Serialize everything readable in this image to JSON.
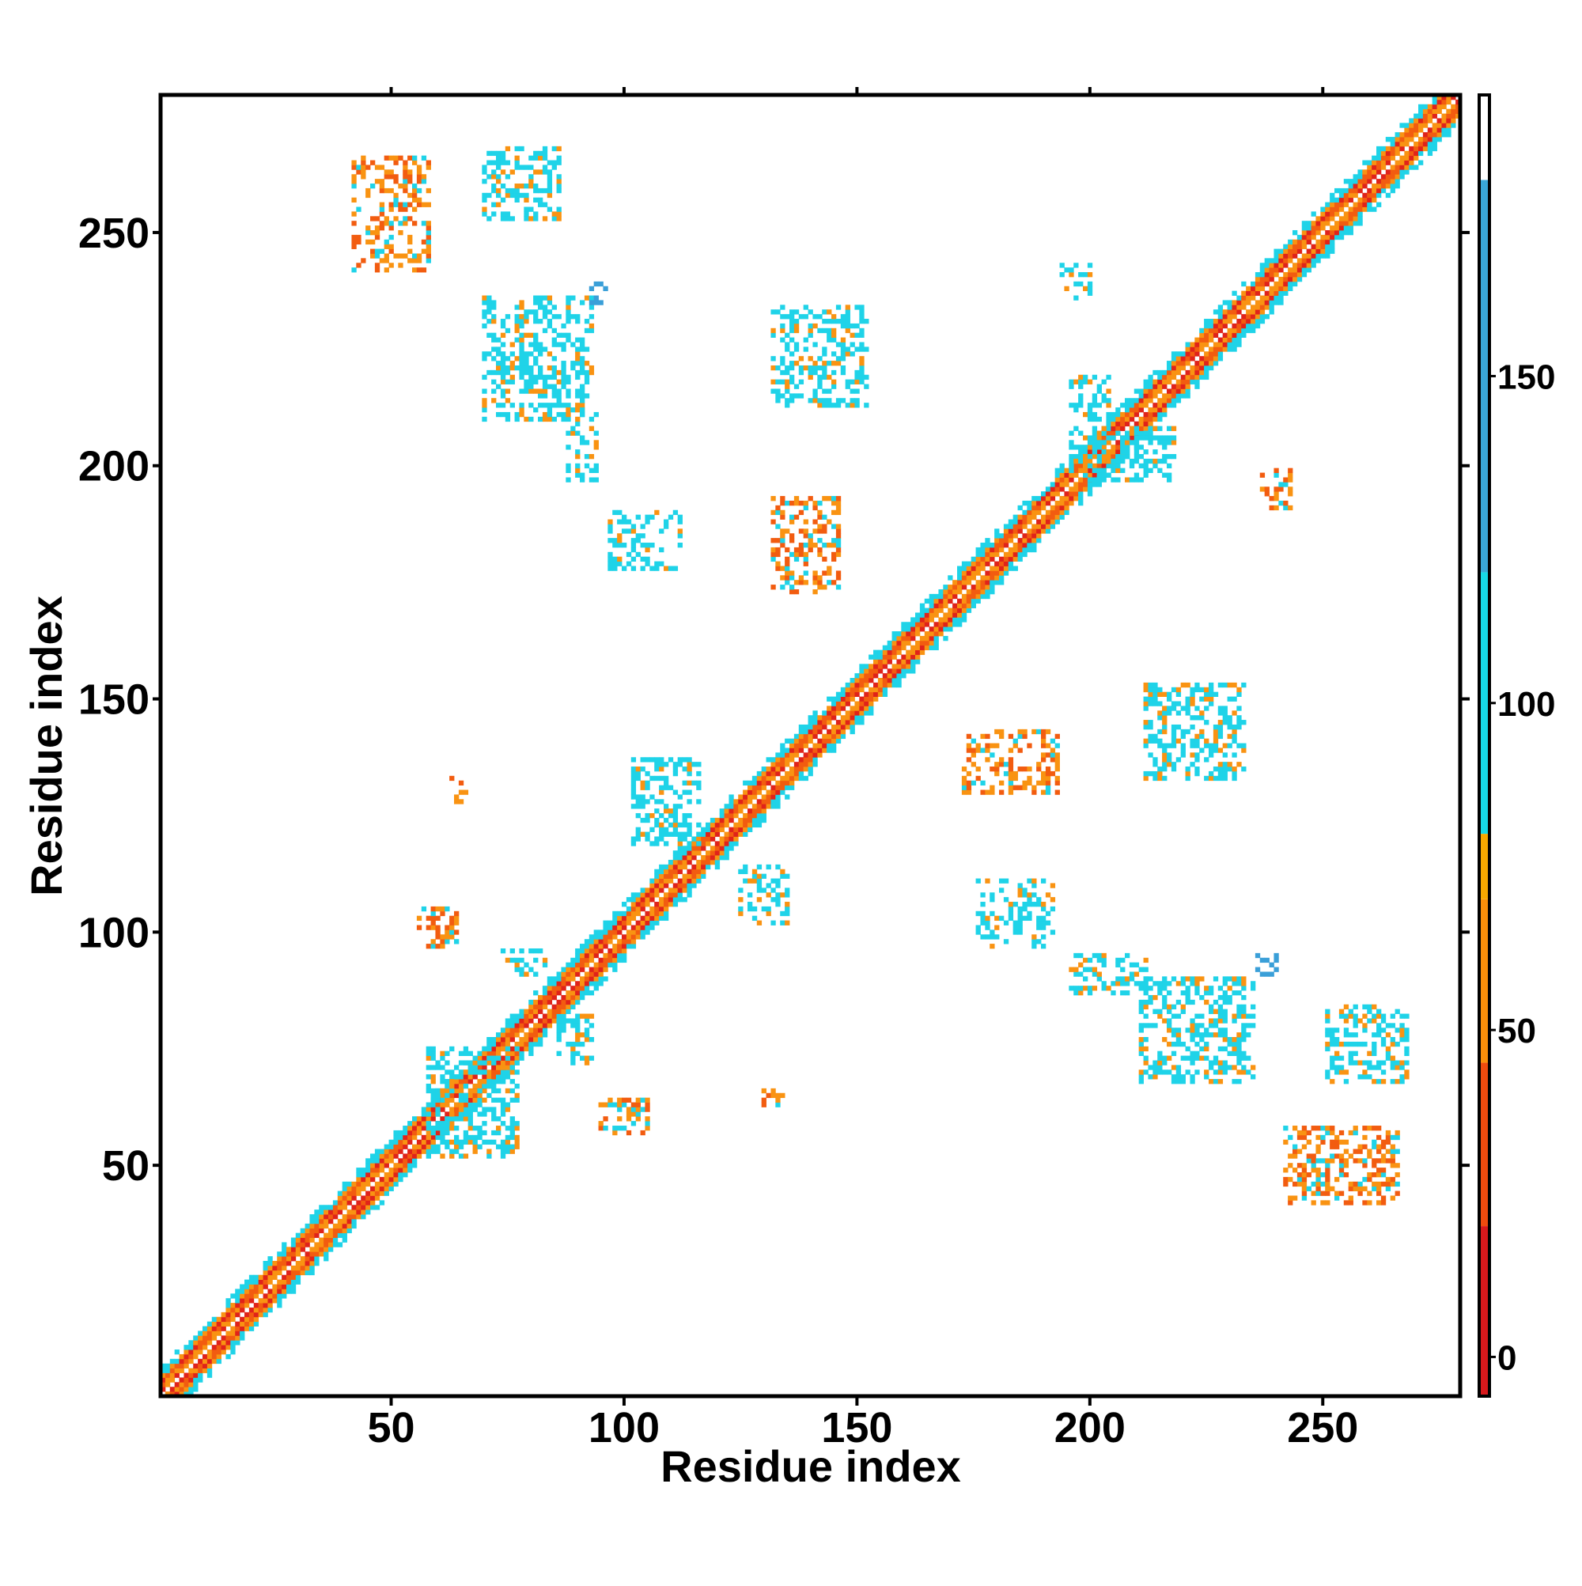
{
  "chart_data": {
    "type": "heatmap",
    "title": "",
    "xlabel": "Residue index",
    "ylabel": "Residue index",
    "xlim": [
      1,
      279
    ],
    "ylim": [
      1,
      279
    ],
    "x_ticks": [
      50,
      100,
      150,
      200,
      250
    ],
    "y_ticks": [
      50,
      100,
      150,
      200,
      250
    ],
    "colorbar": {
      "ticks": [
        0,
        50,
        100,
        150
      ],
      "range": [
        -6,
        193
      ],
      "bands": [
        {
          "from": -6,
          "to": 20,
          "color": "#d7191c"
        },
        {
          "from": 20,
          "to": 45,
          "color": "#ef4b0e"
        },
        {
          "from": 45,
          "to": 70,
          "color": "#f98f0a"
        },
        {
          "from": 70,
          "to": 80,
          "color": "#f6a800"
        },
        {
          "from": 80,
          "to": 120,
          "color": "#17d8e6"
        },
        {
          "from": 120,
          "to": 180,
          "color": "#3aa6d6"
        },
        {
          "from": 180,
          "to": 193,
          "color": "#ffffff"
        }
      ]
    },
    "colors": {
      "red": "#e0231a",
      "orange_red": "#f25c10",
      "orange": "#f99312",
      "cyan": "#1fd3e8",
      "blue": "#3a9fd8"
    },
    "diagonal": {
      "band_half_width": 6
    },
    "contact_regions": [
      {
        "x": [
          42,
          58
        ],
        "y": [
          242,
          266
        ],
        "value": 60
      },
      {
        "x": [
          70,
          86
        ],
        "y": [
          253,
          268
        ],
        "value": 95
      },
      {
        "x": [
          70,
          93
        ],
        "y": [
          210,
          236
        ],
        "value": 95
      },
      {
        "x": [
          88,
          94
        ],
        "y": [
          197,
          212
        ],
        "value": 110
      },
      {
        "x": [
          93,
          97
        ],
        "y": [
          235,
          239
        ],
        "value": 150
      },
      {
        "x": [
          97,
          112
        ],
        "y": [
          178,
          190
        ],
        "value": 100
      },
      {
        "x": [
          132,
          152
        ],
        "y": [
          213,
          234
        ],
        "value": 95
      },
      {
        "x": [
          132,
          146
        ],
        "y": [
          173,
          193
        ],
        "value": 50
      },
      {
        "x": [
          102,
          116
        ],
        "y": [
          119,
          137
        ],
        "value": 110
      },
      {
        "x": [
          125,
          135
        ],
        "y": [
          102,
          114
        ],
        "value": 110
      },
      {
        "x": [
          58,
          77
        ],
        "y": [
          52,
          75
        ],
        "value": 95
      },
      {
        "x": [
          56,
          64
        ],
        "y": [
          97,
          105
        ],
        "value": 60
      },
      {
        "x": [
          74,
          83
        ],
        "y": [
          91,
          96
        ],
        "value": 110
      },
      {
        "x": [
          86,
          93
        ],
        "y": [
          72,
          82
        ],
        "value": 110
      },
      {
        "x": [
          95,
          105
        ],
        "y": [
          57,
          64
        ],
        "value": 60
      },
      {
        "x": [
          63,
          66
        ],
        "y": [
          128,
          133
        ],
        "value": 60
      },
      {
        "x": [
          130,
          134
        ],
        "y": [
          63,
          66
        ],
        "value": 60
      },
      {
        "x": [
          173,
          193
        ],
        "y": [
          130,
          143
        ],
        "value": 50
      },
      {
        "x": [
          212,
          233
        ],
        "y": [
          133,
          153
        ],
        "value": 95
      },
      {
        "x": [
          176,
          192
        ],
        "y": [
          97,
          111
        ],
        "value": 100
      },
      {
        "x": [
          196,
          212
        ],
        "y": [
          87,
          95
        ],
        "value": 110
      },
      {
        "x": [
          211,
          235
        ],
        "y": [
          68,
          90
        ],
        "value": 95
      },
      {
        "x": [
          236,
          240
        ],
        "y": [
          91,
          95
        ],
        "value": 150
      },
      {
        "x": [
          251,
          268
        ],
        "y": [
          68,
          84
        ],
        "value": 95
      },
      {
        "x": [
          242,
          266
        ],
        "y": [
          42,
          58
        ],
        "value": 60
      },
      {
        "x": [
          196,
          218
        ],
        "y": [
          197,
          208
        ],
        "value": 110
      },
      {
        "x": [
          237,
          243
        ],
        "y": [
          191,
          199
        ],
        "value": 60
      },
      {
        "x": [
          194,
          200
        ],
        "y": [
          236,
          243
        ],
        "value": 100
      },
      {
        "x": [
          196,
          204
        ],
        "y": [
          210,
          219
        ],
        "value": 110
      }
    ]
  }
}
